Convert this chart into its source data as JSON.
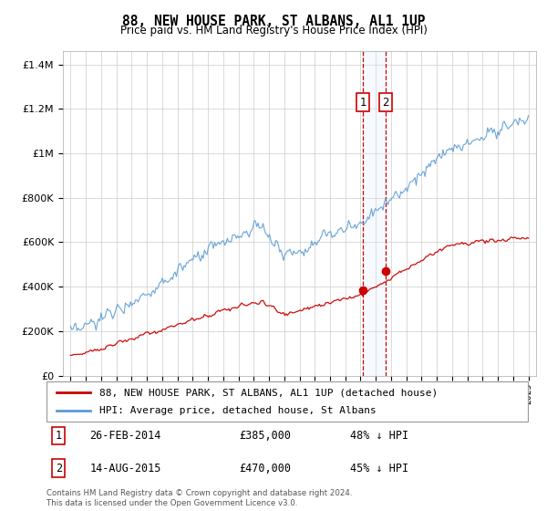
{
  "title": "88, NEW HOUSE PARK, ST ALBANS, AL1 1UP",
  "subtitle": "Price paid vs. HM Land Registry's House Price Index (HPI)",
  "legend_line1": "88, NEW HOUSE PARK, ST ALBANS, AL1 1UP (detached house)",
  "legend_line2": "HPI: Average price, detached house, St Albans",
  "annotation1_date": "26-FEB-2014",
  "annotation1_price": "£385,000",
  "annotation1_hpi": "48% ↓ HPI",
  "annotation2_date": "14-AUG-2015",
  "annotation2_price": "£470,000",
  "annotation2_hpi": "45% ↓ HPI",
  "footer": "Contains HM Land Registry data © Crown copyright and database right 2024.\nThis data is licensed under the Open Government Licence v3.0.",
  "hpi_color": "#5b9bd5",
  "price_color": "#cc0000",
  "vline_color": "#cc0000",
  "shade_color": "#ddeeff",
  "marker_color": "#cc0000",
  "ylim_max": 1460000,
  "transaction1_year": 2014.15,
  "transaction2_year": 2015.62,
  "transaction1_value": 385000,
  "transaction2_value": 470000
}
